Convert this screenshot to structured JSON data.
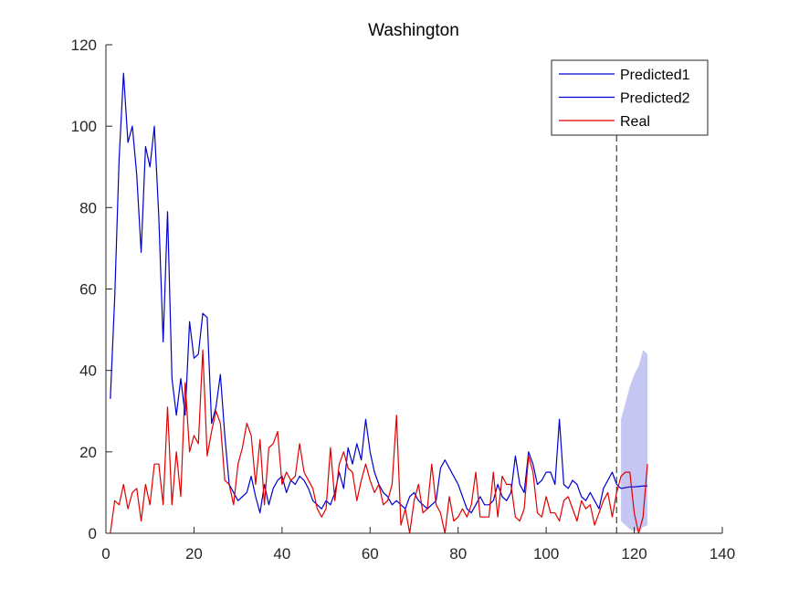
{
  "chart_data": {
    "type": "line",
    "title": "Washington",
    "xlabel": "",
    "ylabel": "",
    "xlim": [
      0,
      140
    ],
    "ylim": [
      0,
      120
    ],
    "x_ticks": [
      0,
      20,
      40,
      60,
      80,
      100,
      120,
      140
    ],
    "y_ticks": [
      0,
      20,
      40,
      60,
      80,
      100,
      120
    ],
    "x_tick_labels": [
      "0",
      "20",
      "40",
      "60",
      "80",
      "100",
      "120",
      "140"
    ],
    "y_tick_labels": [
      "0",
      "20",
      "40",
      "60",
      "80",
      "100",
      "120"
    ],
    "grid": false,
    "legend": {
      "placement": "top-right",
      "entries": [
        "Predicted1",
        "Predicted2",
        "Real"
      ]
    },
    "vertical_line": {
      "x": 116,
      "style": "dashed",
      "color": "#404040"
    },
    "confidence_band": {
      "color": "#c6c6f3",
      "x": [
        117,
        118,
        119,
        120,
        121,
        122,
        123
      ],
      "upper": [
        28,
        32,
        36,
        39,
        41,
        45,
        44
      ],
      "lower": [
        3,
        2,
        1,
        0.5,
        0.5,
        1.5,
        2
      ]
    },
    "series": [
      {
        "name": "Predicted1",
        "color": "#0000cd",
        "x": [
          1,
          2,
          3,
          4,
          5,
          6,
          7,
          8,
          9,
          10,
          11,
          12,
          13,
          14,
          15,
          16,
          17,
          18,
          19,
          20,
          21,
          22,
          23,
          24,
          25,
          26,
          27,
          28,
          29,
          30,
          31,
          32,
          33,
          34,
          35,
          36,
          37,
          38,
          39,
          40,
          41,
          42,
          43,
          44,
          45,
          46,
          47,
          48,
          49,
          50,
          51,
          52,
          53,
          54,
          55,
          56,
          57,
          58,
          59,
          60,
          61,
          62,
          63,
          64,
          65,
          66,
          67,
          68,
          69,
          70,
          71,
          72,
          73,
          74,
          75,
          76,
          77,
          78,
          79,
          80,
          81,
          82,
          83,
          84,
          85,
          86,
          87,
          88,
          89,
          90,
          91,
          92,
          93,
          94,
          95,
          96,
          97,
          98,
          99,
          100,
          101,
          102,
          103,
          104,
          105,
          106,
          107,
          108,
          109,
          110,
          111,
          112,
          113,
          114,
          115,
          116
        ],
        "values": [
          33,
          58,
          92,
          113,
          96,
          100,
          88,
          69,
          95,
          90,
          100,
          78,
          47,
          79,
          38,
          29,
          38,
          29,
          52,
          43,
          44,
          54,
          53,
          27,
          31,
          39,
          24,
          12,
          10,
          8,
          9,
          10,
          14,
          9,
          5,
          12,
          7,
          11,
          13,
          14,
          10,
          13,
          12,
          14,
          13,
          11,
          8,
          7,
          6,
          8,
          7,
          10,
          15,
          11,
          21,
          17,
          22,
          18,
          28,
          20,
          15,
          12,
          10,
          9,
          7,
          8,
          7,
          6,
          9,
          10,
          8,
          7,
          6,
          7,
          8,
          16,
          18,
          16,
          14,
          12,
          9,
          6,
          5,
          7,
          9,
          7,
          7,
          8,
          12,
          9,
          8,
          10,
          19,
          12,
          10,
          20,
          17,
          12,
          13,
          15,
          15,
          12,
          28,
          12,
          11,
          13,
          12,
          9,
          8,
          10,
          8,
          6,
          11,
          13,
          15,
          12
        ]
      },
      {
        "name": "Predicted2",
        "color": "#0000cd",
        "x": [
          116,
          117,
          118,
          119,
          120,
          121,
          122,
          123
        ],
        "values": [
          12,
          11,
          11.2,
          11.4,
          11.4,
          11.5,
          11.6,
          11.6
        ]
      },
      {
        "name": "Real",
        "color": "#e00000",
        "x": [
          1,
          2,
          3,
          4,
          5,
          6,
          7,
          8,
          9,
          10,
          11,
          12,
          13,
          14,
          15,
          16,
          17,
          18,
          19,
          20,
          21,
          22,
          23,
          24,
          25,
          26,
          27,
          28,
          29,
          30,
          31,
          32,
          33,
          34,
          35,
          36,
          37,
          38,
          39,
          40,
          41,
          42,
          43,
          44,
          45,
          46,
          47,
          48,
          49,
          50,
          51,
          52,
          53,
          54,
          55,
          56,
          57,
          58,
          59,
          60,
          61,
          62,
          63,
          64,
          65,
          66,
          67,
          68,
          69,
          70,
          71,
          72,
          73,
          74,
          75,
          76,
          77,
          78,
          79,
          80,
          81,
          82,
          83,
          84,
          85,
          86,
          87,
          88,
          89,
          90,
          91,
          92,
          93,
          94,
          95,
          96,
          97,
          98,
          99,
          100,
          101,
          102,
          103,
          104,
          105,
          106,
          107,
          108,
          109,
          110,
          111,
          112,
          113,
          114,
          115,
          116,
          117,
          118,
          119,
          120,
          121,
          122,
          123
        ],
        "values": [
          0,
          8,
          7,
          12,
          6,
          10,
          11,
          3,
          12,
          7,
          17,
          17,
          7,
          31,
          7,
          20,
          9,
          37,
          20,
          24,
          22,
          45,
          19,
          25,
          30,
          27,
          13,
          12,
          7,
          17,
          21,
          27,
          24,
          12,
          23,
          7,
          21,
          22,
          25,
          12,
          15,
          13,
          14,
          22,
          15,
          13,
          11,
          6,
          4,
          6,
          21,
          8,
          17,
          20,
          16,
          15,
          8,
          13,
          17,
          13,
          10,
          12,
          7,
          8,
          12,
          29,
          2,
          6,
          0,
          8,
          12,
          5,
          6,
          17,
          7,
          5,
          0,
          9,
          3,
          4,
          6,
          4,
          7,
          15,
          4,
          4,
          4,
          15,
          4,
          14,
          12,
          12,
          4,
          3,
          6,
          19,
          15,
          5,
          4,
          9,
          5,
          5,
          3,
          8,
          9,
          6,
          3,
          8,
          6,
          7,
          2,
          5,
          8,
          10,
          4,
          10,
          14,
          15,
          15,
          5,
          0,
          4,
          17
        ]
      }
    ]
  }
}
